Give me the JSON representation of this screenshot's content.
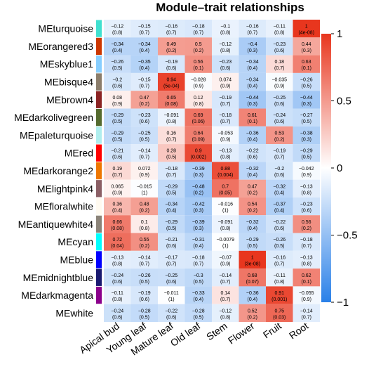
{
  "chart_data": {
    "type": "heatmap",
    "title": "Module–trait relationships",
    "columns": [
      "Apical bud",
      "Young leaf",
      "Mature leaf",
      "Old leaf",
      "Stem",
      "Flower",
      "Fruit",
      "Root"
    ],
    "rows": [
      {
        "module": "MEturquoise",
        "color": "#40E0D0",
        "values": [
          -0.12,
          -0.15,
          -0.16,
          -0.18,
          -0.1,
          -0.16,
          -0.11,
          1
        ],
        "pvalues": [
          "0.8",
          "0.7",
          "0.7",
          "0.7",
          "0.8",
          "0.7",
          "0.8",
          "4e-08"
        ]
      },
      {
        "module": "MEorangered3",
        "color": "#CD3700",
        "values": [
          -0.34,
          -0.34,
          0.49,
          0.5,
          -0.12,
          -0.4,
          -0.23,
          0.44
        ],
        "pvalues": [
          "0.4",
          "0.4",
          "0.2",
          "0.2",
          "0.8",
          "0.3",
          "0.6",
          "0.3"
        ]
      },
      {
        "module": "MEskyblue1",
        "color": "#87CEFF",
        "values": [
          -0.26,
          -0.35,
          -0.19,
          0.56,
          -0.23,
          -0.34,
          0.18,
          0.63
        ],
        "pvalues": [
          "0.5",
          "0.4",
          "0.6",
          "0.1",
          "0.6",
          "0.4",
          "0.7",
          "0.1"
        ]
      },
      {
        "module": "MEbisque4",
        "color": "#8B7D6B",
        "values": [
          -0.2,
          -0.15,
          0.94,
          -0.028,
          0.074,
          -0.34,
          -0.035,
          -0.26
        ],
        "pvalues": [
          "0.6",
          "0.7",
          "5e-04",
          "0.9",
          "0.9",
          "0.4",
          "0.9",
          "0.5"
        ]
      },
      {
        "module": "MEbrown4",
        "color": "#8B2323",
        "values": [
          0.08,
          0.47,
          0.65,
          0.12,
          -0.19,
          -0.44,
          -0.25,
          -0.44
        ],
        "pvalues": [
          "0.9",
          "0.2",
          "0.08",
          "0.8",
          "0.7",
          "0.3",
          "0.6",
          "0.3"
        ]
      },
      {
        "module": "MEdarkolivegreen",
        "color": "#556B2F",
        "values": [
          -0.29,
          -0.23,
          -0.091,
          0.69,
          -0.18,
          0.61,
          -0.24,
          -0.27
        ],
        "pvalues": [
          "0.5",
          "0.6",
          "0.8",
          "0.06",
          "0.7",
          "0.1",
          "0.6",
          "0.5"
        ]
      },
      {
        "module": "MEpaleturquoise",
        "color": "#AFEEEE",
        "values": [
          -0.29,
          -0.25,
          0.16,
          0.64,
          -0.053,
          -0.36,
          0.53,
          -0.38
        ],
        "pvalues": [
          "0.5",
          "0.5",
          "0.7",
          "0.09",
          "0.9",
          "0.4",
          "0.2",
          "0.3"
        ]
      },
      {
        "module": "MEred",
        "color": "#FF0000",
        "values": [
          -0.21,
          -0.14,
          0.28,
          0.9,
          -0.13,
          -0.22,
          -0.19,
          -0.29
        ],
        "pvalues": [
          "0.6",
          "0.7",
          "0.5",
          "0.002",
          "0.8",
          "0.6",
          "0.7",
          "0.5"
        ]
      },
      {
        "module": "MEdarkorange2",
        "color": "#EE7600",
        "values": [
          0.19,
          0.072,
          -0.18,
          -0.39,
          0.88,
          -0.32,
          -0.2,
          -0.042
        ],
        "pvalues": [
          "0.7",
          "0.9",
          "0.7",
          "0.3",
          "0.004",
          "0.4",
          "0.6",
          "0.9"
        ]
      },
      {
        "module": "MElightpink4",
        "color": "#8B5F65",
        "values": [
          0.065,
          -0.015,
          -0.29,
          -0.48,
          0.7,
          0.47,
          -0.32,
          -0.13
        ],
        "pvalues": [
          "0.9",
          "1",
          "0.5",
          "0.2",
          "0.05",
          "0.2",
          "0.4",
          "0.8"
        ]
      },
      {
        "module": "MEfloralwhite",
        "color": "#FFFAF0",
        "values": [
          0.36,
          0.48,
          -0.34,
          -0.42,
          -0.016,
          0.54,
          -0.37,
          -0.23
        ],
        "pvalues": [
          "0.4",
          "0.2",
          "0.4",
          "0.3",
          "1",
          "0.2",
          "0.4",
          "0.6"
        ]
      },
      {
        "module": "MEantiquewhite4",
        "color": "#8B8378",
        "values": [
          0.66,
          0.1,
          -0.29,
          -0.39,
          -0.091,
          -0.32,
          -0.22,
          0.56
        ],
        "pvalues": [
          "0.08",
          "0.8",
          "0.5",
          "0.3",
          "0.8",
          "0.4",
          "0.6",
          "0.2"
        ]
      },
      {
        "module": "MEcyan",
        "color": "#00FFFF",
        "values": [
          0.72,
          0.55,
          -0.21,
          -0.31,
          -0.0079,
          -0.29,
          -0.26,
          -0.18
        ],
        "pvalues": [
          "0.04",
          "0.2",
          "0.6",
          "0.4",
          "1",
          "0.5",
          "0.5",
          "0.7"
        ]
      },
      {
        "module": "MEblue",
        "color": "#0000FF",
        "values": [
          -0.13,
          -0.14,
          -0.17,
          -0.18,
          -0.07,
          1,
          -0.16,
          -0.13
        ],
        "pvalues": [
          "0.8",
          "0.7",
          "0.7",
          "0.7",
          "0.9",
          "3e-08",
          "0.7",
          "0.8"
        ]
      },
      {
        "module": "MEmidnightblue",
        "color": "#191970",
        "values": [
          -0.24,
          -0.26,
          -0.25,
          -0.3,
          -0.14,
          0.68,
          -0.11,
          0.62
        ],
        "pvalues": [
          "0.6",
          "0.5",
          "0.6",
          "0.5",
          "0.7",
          "0.07",
          "0.8",
          "0.1"
        ]
      },
      {
        "module": "MEdarkmagenta",
        "color": "#8B008B",
        "values": [
          -0.11,
          -0.19,
          -0.011,
          -0.33,
          0.14,
          -0.36,
          0.91,
          -0.055
        ],
        "pvalues": [
          "0.8",
          "0.6",
          "1",
          "0.4",
          "0.7",
          "0.4",
          "0.001",
          "0.9"
        ]
      },
      {
        "module": "MEwhite",
        "color": "#FFFFFF",
        "values": [
          -0.24,
          -0.28,
          -0.22,
          -0.28,
          -0.12,
          0.52,
          0.75,
          -0.14
        ],
        "pvalues": [
          "0.6",
          "0.5",
          "0.6",
          "0.5",
          "0.8",
          "0.2",
          "0.03",
          "0.7"
        ]
      }
    ],
    "colorbar": {
      "ticks": [
        "1",
        "0.5",
        "0",
        "−0.5",
        "−1"
      ],
      "range": [
        -1,
        1
      ],
      "low_color": "#2A80E8",
      "mid_color": "#FFFFFF",
      "high_color": "#E8361E"
    }
  }
}
